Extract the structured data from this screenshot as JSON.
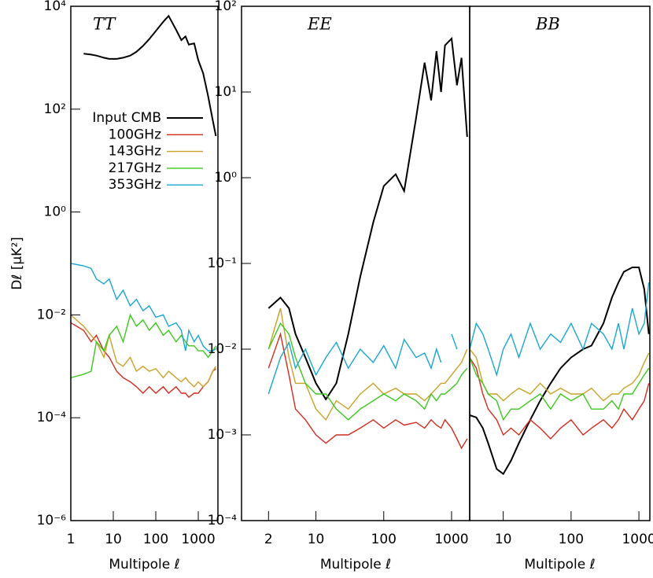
{
  "chart_data": [
    {
      "type": "line",
      "title": "TT",
      "xlabel": "Multipole ℓ",
      "ylabel": "Dℓ [μK²]",
      "xlog": true,
      "ylog": true,
      "legend": "upper left",
      "xlim": [
        1,
        2900
      ],
      "ylim": [
        1e-06,
        10000
      ],
      "xticks": [
        1,
        10,
        100,
        1000
      ],
      "yticks": [
        {
          "value": 1e-06,
          "label": "10⁻⁶"
        },
        {
          "value": 0.0001,
          "label": "10⁻⁴"
        },
        {
          "value": 0.01,
          "label": "10⁻²"
        },
        {
          "value": 1,
          "label": "10⁰"
        },
        {
          "value": 100,
          "label": "10²"
        },
        {
          "value": 10000,
          "label": "10⁴"
        }
      ],
      "x": [
        1,
        2,
        3,
        4,
        6,
        8,
        12,
        17,
        25,
        35,
        50,
        70,
        100,
        150,
        200,
        300,
        400,
        500,
        600,
        800,
        1000,
        1300,
        1700,
        2200,
        2600
      ],
      "series": [
        {
          "name": "Input CMB",
          "color": "#000000",
          "values": [
            null,
            1200,
            1150,
            1100,
            1000,
            950,
            950,
            1000,
            1100,
            1300,
            1700,
            2300,
            3300,
            5000,
            6500,
            3500,
            2200,
            2600,
            1800,
            1900,
            900,
            500,
            180,
            60,
            30
          ]
        },
        {
          "name": "100GHz",
          "color": "#d42a1e",
          "values": [
            0.007,
            0.005,
            0.003,
            0.004,
            0.002,
            0.0015,
            0.0008,
            0.0006,
            0.0005,
            0.0004,
            0.0003,
            0.0004,
            0.0003,
            0.0004,
            0.0003,
            0.0004,
            0.0003,
            0.0003,
            0.00025,
            0.0003,
            0.0003,
            0.0004,
            0.0005,
            0.0008,
            0.0009
          ]
        },
        {
          "name": "143GHz",
          "color": "#c9a227",
          "values": [
            0.01,
            0.006,
            0.004,
            0.003,
            0.0015,
            0.004,
            0.0012,
            0.001,
            0.0015,
            0.0008,
            0.001,
            0.0008,
            0.0009,
            0.0006,
            0.0008,
            0.0006,
            0.0005,
            0.0006,
            0.0005,
            0.0004,
            0.0005,
            0.0004,
            0.0005,
            0.0008,
            0.001
          ]
        },
        {
          "name": "217GHz",
          "color": "#3ec81e",
          "values": [
            0.0006,
            0.0007,
            0.0008,
            0.003,
            0.002,
            0.004,
            0.006,
            0.003,
            0.01,
            0.006,
            0.008,
            0.005,
            0.007,
            0.004,
            0.005,
            0.003,
            0.004,
            0.003,
            0.0025,
            0.0025,
            0.002,
            0.002,
            0.0015,
            0.002,
            0.0025
          ]
        },
        {
          "name": "353GHz",
          "color": "#1aa6d2",
          "values": [
            0.1,
            0.09,
            0.08,
            0.05,
            0.04,
            0.05,
            0.02,
            0.03,
            0.015,
            0.02,
            0.012,
            0.015,
            0.009,
            0.01,
            0.006,
            0.007,
            0.005,
            0.002,
            0.005,
            0.003,
            0.004,
            0.0025,
            0.002,
            0.002,
            0.0022
          ]
        }
      ]
    },
    {
      "type": "line",
      "title": "EE",
      "xlabel": "Multipole ℓ",
      "xlog": true,
      "ylog": true,
      "xlim": [
        0.8,
        1850
      ],
      "ylim": [
        0.0001,
        100
      ],
      "xticks": [
        2,
        10,
        100,
        1000
      ],
      "yticks": [
        {
          "value": 0.0001,
          "label": "10⁻⁴"
        },
        {
          "value": 0.001,
          "label": "10⁻³"
        },
        {
          "value": 0.01,
          "label": "10⁻²"
        },
        {
          "value": 0.1,
          "label": "10⁻¹"
        },
        {
          "value": 1,
          "label": "10⁰"
        },
        {
          "value": 10,
          "label": "10¹"
        },
        {
          "value": 100,
          "label": "10²"
        }
      ],
      "x": [
        2,
        3,
        4,
        5,
        7,
        10,
        14,
        20,
        30,
        45,
        70,
        100,
        150,
        200,
        300,
        400,
        500,
        600,
        700,
        800,
        1000,
        1200,
        1400,
        1700
      ],
      "series": [
        {
          "color": "#000000",
          "values": [
            0.03,
            0.04,
            0.03,
            0.015,
            0.008,
            0.004,
            0.0026,
            0.004,
            0.015,
            0.07,
            0.3,
            0.8,
            1.1,
            0.7,
            5,
            22,
            8,
            30,
            10,
            35,
            42,
            12,
            25,
            3
          ]
        },
        {
          "color": "#d42a1e",
          "values": [
            0.006,
            0.015,
            0.005,
            0.002,
            0.0015,
            0.001,
            0.0008,
            0.001,
            0.001,
            0.0012,
            0.0015,
            0.0012,
            0.0015,
            0.0013,
            0.0014,
            0.0012,
            0.0015,
            0.0013,
            0.0012,
            0.0015,
            0.0012,
            0.0009,
            0.0007,
            0.0009
          ]
        },
        {
          "color": "#c9a227",
          "values": [
            0.01,
            0.03,
            0.008,
            0.004,
            0.004,
            0.002,
            0.0015,
            0.0025,
            0.002,
            0.003,
            0.004,
            0.003,
            0.0035,
            0.003,
            0.003,
            0.0025,
            0.003,
            0.0035,
            0.004,
            0.004,
            0.005,
            0.006,
            0.007,
            0.01
          ]
        },
        {
          "color": "#3ec81e",
          "values": [
            0.01,
            0.02,
            0.015,
            0.008,
            0.004,
            0.003,
            0.003,
            0.002,
            0.0015,
            0.002,
            0.0025,
            0.003,
            0.0025,
            0.003,
            0.0025,
            0.002,
            0.003,
            0.0025,
            0.003,
            0.003,
            0.0035,
            0.004,
            0.005,
            0.006
          ]
        },
        {
          "color": "#1aa6d2",
          "values": [
            0.003,
            0.008,
            0.012,
            0.006,
            0.01,
            0.005,
            0.008,
            0.012,
            0.006,
            0.01,
            0.007,
            0.011,
            0.006,
            0.013,
            0.008,
            0.009,
            0.006,
            0.01,
            0.007,
            null,
            0.015,
            0.01,
            null,
            0.012
          ]
        }
      ]
    },
    {
      "type": "line",
      "title": "BB",
      "xlabel": "Multipole ℓ",
      "xlog": true,
      "ylog": true,
      "xlim": [
        3.2,
        1450
      ],
      "ylim": [
        0.0001,
        100
      ],
      "xticks": [
        10,
        100,
        1000
      ],
      "x": [
        3.2,
        4,
        5,
        6,
        8,
        10,
        13,
        17,
        25,
        35,
        50,
        70,
        100,
        150,
        200,
        300,
        400,
        500,
        600,
        800,
        1000,
        1200,
        1400
      ],
      "series": [
        {
          "color": "#000000",
          "values": [
            0.0017,
            0.0016,
            0.0012,
            0.0008,
            0.0004,
            0.00035,
            0.0005,
            0.0008,
            0.0015,
            0.0025,
            0.004,
            0.006,
            0.008,
            0.01,
            0.011,
            0.02,
            0.04,
            0.06,
            0.08,
            0.09,
            0.09,
            0.05,
            0.015
          ]
        },
        {
          "color": "#d42a1e",
          "values": [
            0.008,
            0.006,
            0.003,
            0.002,
            0.0015,
            0.001,
            0.0012,
            0.001,
            0.0015,
            0.0012,
            0.0009,
            0.0012,
            0.0015,
            0.001,
            0.0012,
            0.0015,
            0.0012,
            0.0015,
            0.002,
            0.0015,
            0.002,
            0.0025,
            0.004
          ]
        },
        {
          "color": "#c9a227",
          "values": [
            0.01,
            0.008,
            0.004,
            0.003,
            0.003,
            0.0025,
            0.003,
            0.0035,
            0.003,
            0.004,
            0.003,
            0.0035,
            0.003,
            0.003,
            0.0035,
            0.0025,
            0.003,
            0.003,
            0.0035,
            0.004,
            0.005,
            0.007,
            0.009
          ]
        },
        {
          "color": "#3ec81e",
          "values": [
            0.008,
            0.005,
            0.004,
            0.003,
            0.0025,
            0.0015,
            0.002,
            0.002,
            0.0025,
            0.003,
            0.002,
            0.003,
            0.0025,
            0.003,
            0.002,
            0.002,
            0.0025,
            0.002,
            0.003,
            0.003,
            0.004,
            0.005,
            0.006
          ]
        },
        {
          "color": "#1aa6d2",
          "values": [
            0.01,
            0.02,
            0.015,
            0.01,
            0.005,
            0.01,
            0.015,
            0.008,
            0.02,
            0.01,
            0.015,
            0.012,
            0.02,
            0.01,
            0.02,
            0.015,
            0.01,
            0.02,
            0.01,
            0.03,
            0.015,
            0.02,
            0.06
          ]
        }
      ]
    }
  ]
}
